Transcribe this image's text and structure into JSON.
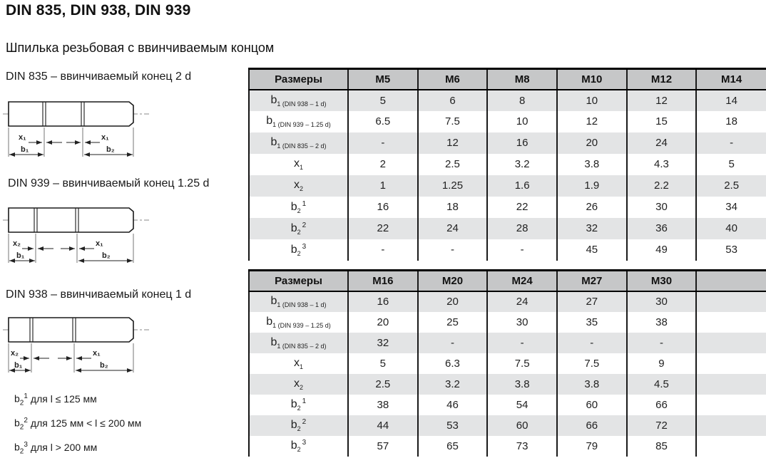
{
  "page": {
    "title": "DIN 835, DIN 938, DIN 939",
    "subtitle": "Шпилька резьбовая с ввинчиваемым концом"
  },
  "drawings": [
    {
      "caption": "DIN 835 – ввинчиваемый конец 2 d",
      "labels": {
        "left_x": "x₁",
        "right_x": "x₁",
        "left_b": "b₁",
        "right_b": "b₂"
      }
    },
    {
      "caption": "DIN 939 – ввинчиваемый конец 1.25 d",
      "labels": {
        "left_x": "x₂",
        "right_x": "x₁",
        "left_b": "b₁",
        "right_b": "b₂"
      }
    },
    {
      "caption": "DIN 938 – ввинчиваемый конец 1 d",
      "labels": {
        "left_x": "x₂",
        "right_x": "x₁",
        "left_b": "b₁",
        "right_b": "b₂"
      }
    }
  ],
  "footnotes": [
    {
      "base": "b",
      "sub": "2",
      "sup": "1",
      "text": "для l ≤ 125 мм"
    },
    {
      "base": "b",
      "sub": "2",
      "sup": "2",
      "text": "для 125 мм < l ≤ 200 мм"
    },
    {
      "base": "b",
      "sub": "2",
      "sup": "3",
      "text": "для l > 200 мм"
    }
  ],
  "tables": [
    {
      "columns": [
        "Размеры",
        "M5",
        "M6",
        "M8",
        "M10",
        "M12",
        "M14"
      ],
      "rows": [
        {
          "label": {
            "base": "b",
            "sub": "1 (DIN 938 – 1 d)",
            "sup": ""
          },
          "values": [
            "5",
            "6",
            "8",
            "10",
            "12",
            "14"
          ]
        },
        {
          "label": {
            "base": "b",
            "sub": "1 (DIN 939 – 1.25 d)",
            "sup": ""
          },
          "values": [
            "6.5",
            "7.5",
            "10",
            "12",
            "15",
            "18"
          ]
        },
        {
          "label": {
            "base": "b",
            "sub": "1 (DIN 835 – 2 d)",
            "sup": ""
          },
          "values": [
            "-",
            "12",
            "16",
            "20",
            "24",
            "-"
          ]
        },
        {
          "label": {
            "base": "x",
            "sub": "1",
            "sup": ""
          },
          "values": [
            "2",
            "2.5",
            "3.2",
            "3.8",
            "4.3",
            "5"
          ]
        },
        {
          "label": {
            "base": "x",
            "sub": "2",
            "sup": ""
          },
          "values": [
            "1",
            "1.25",
            "1.6",
            "1.9",
            "2.2",
            "2.5"
          ]
        },
        {
          "label": {
            "base": "b",
            "sub": "2",
            "sup": "1"
          },
          "values": [
            "16",
            "18",
            "22",
            "26",
            "30",
            "34"
          ]
        },
        {
          "label": {
            "base": "b",
            "sub": "2",
            "sup": "2"
          },
          "values": [
            "22",
            "24",
            "28",
            "32",
            "36",
            "40"
          ]
        },
        {
          "label": {
            "base": "b",
            "sub": "2",
            "sup": "3"
          },
          "values": [
            "-",
            "-",
            "-",
            "45",
            "49",
            "53"
          ]
        }
      ]
    },
    {
      "columns": [
        "Размеры",
        "M16",
        "M20",
        "M24",
        "M27",
        "M30",
        ""
      ],
      "rows": [
        {
          "label": {
            "base": "b",
            "sub": "1 (DIN 938 – 1 d)",
            "sup": ""
          },
          "values": [
            "16",
            "20",
            "24",
            "27",
            "30",
            ""
          ]
        },
        {
          "label": {
            "base": "b",
            "sub": "1 (DIN 939 – 1.25 d)",
            "sup": ""
          },
          "values": [
            "20",
            "25",
            "30",
            "35",
            "38",
            ""
          ]
        },
        {
          "label": {
            "base": "b",
            "sub": "1 (DIN 835 – 2 d)",
            "sup": ""
          },
          "values": [
            "32",
            "-",
            "-",
            "-",
            "-",
            ""
          ]
        },
        {
          "label": {
            "base": "x",
            "sub": "1",
            "sup": ""
          },
          "values": [
            "5",
            "6.3",
            "7.5",
            "7.5",
            "9",
            ""
          ]
        },
        {
          "label": {
            "base": "x",
            "sub": "2",
            "sup": ""
          },
          "values": [
            "2.5",
            "3.2",
            "3.8",
            "3.8",
            "4.5",
            ""
          ]
        },
        {
          "label": {
            "base": "b",
            "sub": "2",
            "sup": "1"
          },
          "values": [
            "38",
            "46",
            "54",
            "60",
            "66",
            ""
          ]
        },
        {
          "label": {
            "base": "b",
            "sub": "2",
            "sup": "2"
          },
          "values": [
            "44",
            "53",
            "60",
            "66",
            "72",
            ""
          ]
        },
        {
          "label": {
            "base": "b",
            "sub": "2",
            "sup": "3"
          },
          "values": [
            "57",
            "65",
            "73",
            "79",
            "85",
            ""
          ]
        }
      ]
    }
  ],
  "colors": {
    "header_bg": "#c6c7c8",
    "stripe_bg": "#e3e4e5",
    "line": "#1a1a1a"
  }
}
